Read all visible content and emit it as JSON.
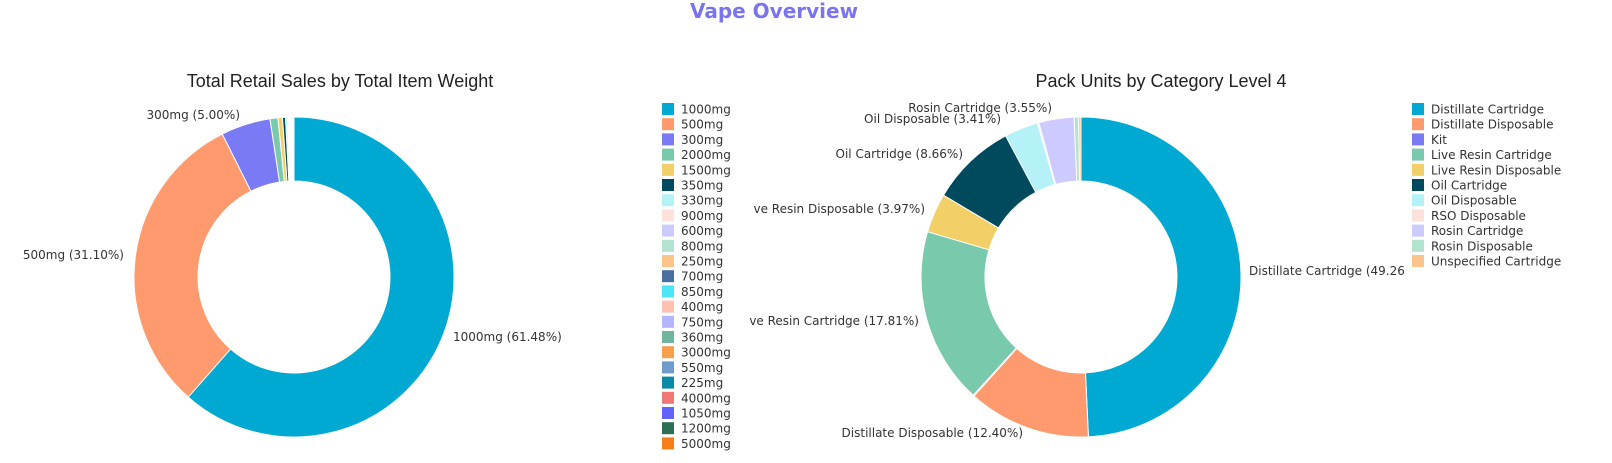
{
  "header": {
    "title": "Vape Overview",
    "title_color": "#7b74f0"
  },
  "chart_data": [
    {
      "type": "pie",
      "hole": 0.6,
      "title": "Total Retail Sales by Total Item Weight",
      "categories": [
        "1000mg",
        "500mg",
        "300mg",
        "2000mg",
        "1500mg",
        "350mg",
        "330mg",
        "900mg",
        "600mg",
        "800mg",
        "250mg",
        "700mg",
        "850mg",
        "400mg",
        "750mg",
        "360mg",
        "3000mg",
        "550mg",
        "225mg",
        "4000mg",
        "1050mg",
        "1200mg",
        "5000mg"
      ],
      "values": [
        61.48,
        31.1,
        5.0,
        0.8,
        0.45,
        0.3,
        0.18,
        0.13,
        0.1,
        0.08,
        0.07,
        0.05,
        0.04,
        0.04,
        0.03,
        0.03,
        0.02,
        0.02,
        0.02,
        0.01,
        0.01,
        0.01,
        0.01
      ],
      "colors": [
        "#00a9d1",
        "#ff9a6e",
        "#7a7af5",
        "#79c9ad",
        "#f2cf67",
        "#004a5e",
        "#b5f2f8",
        "#fde2dc",
        "#cccaff",
        "#b3e3cf",
        "#fcc38a",
        "#4a6f9e",
        "#4de4f7",
        "#ffc2b1",
        "#b4b4ff",
        "#6fb59e",
        "#f79f4c",
        "#6f9bcd",
        "#0b8aa7",
        "#ef7874",
        "#6262ff",
        "#2b6f55",
        "#f57f16"
      ],
      "labels_shown": [
        "1000mg (61.48%)",
        "500mg (31.10%)",
        "300mg (5.00%)"
      ],
      "legend": [
        "1000mg",
        "500mg",
        "300mg",
        "2000mg",
        "1500mg",
        "350mg",
        "330mg",
        "900mg",
        "600mg",
        "800mg",
        "250mg",
        "700mg",
        "850mg",
        "400mg",
        "750mg",
        "360mg",
        "3000mg",
        "550mg",
        "225mg",
        "4000mg",
        "1050mg",
        "1200mg",
        "5000mg"
      ]
    },
    {
      "type": "pie",
      "hole": 0.6,
      "title": "Pack Units by Category Level 4",
      "categories": [
        "Distillate Cartridge",
        "Distillate Disposable",
        "Kit",
        "Live Resin Cartridge",
        "Live Resin Disposable",
        "Oil Cartridge",
        "Oil Disposable",
        "RSO Disposable",
        "Rosin Cartridge",
        "Rosin Disposable",
        "Unspecified Cartridge"
      ],
      "values": [
        49.26,
        12.4,
        0.1,
        17.81,
        3.97,
        8.66,
        3.41,
        0.15,
        3.55,
        0.45,
        0.24
      ],
      "colors": [
        "#00a9d1",
        "#ff9a6e",
        "#7a7af5",
        "#79c9ad",
        "#f2cf67",
        "#004a5e",
        "#b5f2f8",
        "#fde2dc",
        "#cccaff",
        "#b3e3cf",
        "#fcc38a"
      ],
      "labels_shown": [
        "Distillate Cartridge (49.26",
        "Distillate Disposable (12.40%)",
        "ve Resin Cartridge (17.81%)",
        "ve Resin Disposable (3.97%)",
        "Oil Cartridge (8.66%)",
        "Oil Disposable (3.41%)",
        "Rosin Cartridge (3.55%)"
      ],
      "legend": [
        "Distillate Cartridge",
        "Distillate Disposable",
        "Kit",
        "Live Resin Cartridge",
        "Live Resin Disposable",
        "Oil Cartridge",
        "Oil Disposable",
        "RSO Disposable",
        "Rosin Cartridge",
        "Rosin Disposable",
        "Unspecified Cartridge"
      ]
    }
  ]
}
